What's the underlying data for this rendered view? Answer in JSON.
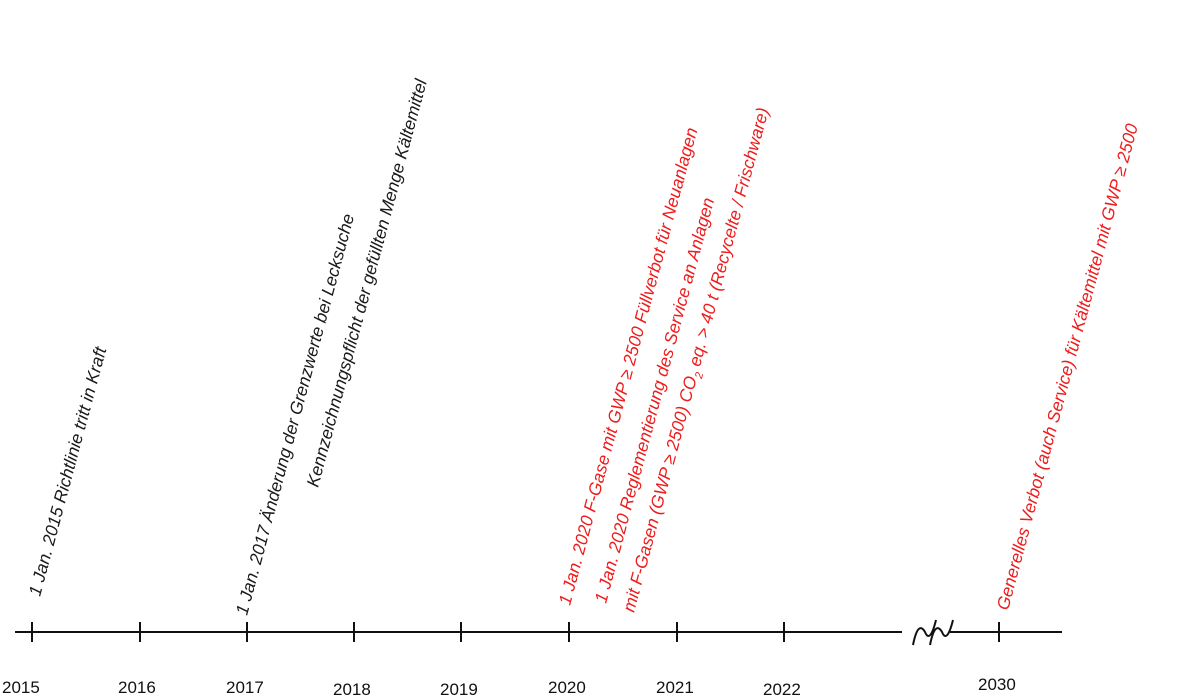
{
  "timeline": {
    "years": [
      "2015",
      "2016",
      "2017",
      "2018",
      "2019",
      "2020",
      "2021",
      "2022",
      "2030"
    ],
    "axis_break_symbol": "≀≀",
    "colors": {
      "axis": "#111111",
      "black_text": "#1a1a1a",
      "red_text": "#ee1c1c"
    }
  },
  "events": {
    "e2015": {
      "line1": "1 Jan. 2015 Richtlinie tritt in Kraft"
    },
    "e2017": {
      "line1": "1 Jan. 2017 Änderung der Grenzwerte bei Lecksuche",
      "line2": "Kennzeichnungspflicht der gefüllten Menge Kältemittel"
    },
    "e2020a": {
      "line1": "1 Jan. 2020 F-Gase mit GWP ≥ 2500 Füllverbot für Neuanlagen"
    },
    "e2020b": {
      "line1": "1 Jan. 2020  Reglementierung des Service an Anlagen",
      "line2_a": "mit F-Gasen (GWP ≥ 2500) CO",
      "line2_sub": "2",
      "line2_b": " eq. > 40 t (Recycelte / Frischware)"
    },
    "e2030": {
      "line1": "Generelles Verbot (auch Service) für Kältemittel mit GWP ≥ 2500"
    }
  }
}
